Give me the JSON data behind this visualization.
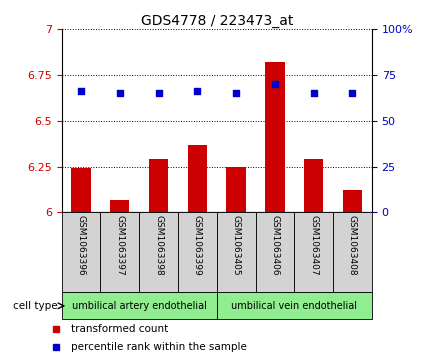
{
  "title": "GDS4778 / 223473_at",
  "samples": [
    "GSM1063396",
    "GSM1063397",
    "GSM1063398",
    "GSM1063399",
    "GSM1063405",
    "GSM1063406",
    "GSM1063407",
    "GSM1063408"
  ],
  "bar_values": [
    6.24,
    6.07,
    6.29,
    6.37,
    6.25,
    6.82,
    6.29,
    6.12
  ],
  "dot_values": [
    66,
    65,
    65,
    66,
    65,
    70,
    65,
    65
  ],
  "ylim_left": [
    6.0,
    7.0
  ],
  "ylim_right": [
    0,
    100
  ],
  "yticks_left": [
    6.0,
    6.25,
    6.5,
    6.75,
    7.0
  ],
  "yticks_right": [
    0,
    25,
    50,
    75,
    100
  ],
  "ytick_labels_left": [
    "6",
    "6.25",
    "6.5",
    "6.75",
    "7"
  ],
  "ytick_labels_right": [
    "0",
    "25",
    "50",
    "75",
    "100%"
  ],
  "bar_color": "#cc0000",
  "dot_color": "#0000cc",
  "grid_color": "#000000",
  "cell_type_groups": [
    {
      "label": "umbilical artery endothelial",
      "start": 0,
      "end": 3,
      "color": "#90ee90"
    },
    {
      "label": "umbilical vein endothelial",
      "start": 4,
      "end": 7,
      "color": "#90ee90"
    }
  ],
  "cell_type_label": "cell type",
  "legend_items": [
    {
      "color": "#cc0000",
      "label": "transformed count"
    },
    {
      "color": "#0000cc",
      "label": "percentile rank within the sample"
    }
  ],
  "bar_width": 0.5,
  "sample_box_color": "#d3d3d3",
  "cell_type_box_color": "#90ee90"
}
